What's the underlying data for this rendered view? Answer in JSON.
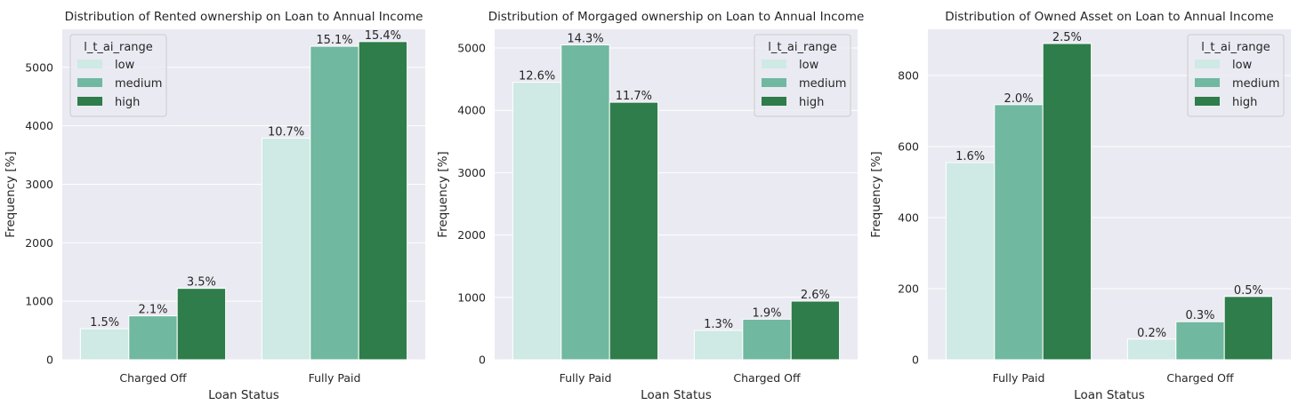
{
  "colors": {
    "axes_bg": "#eaeaf2",
    "grid": "#ffffff",
    "low": "#cfe9e4",
    "medium": "#70b8a0",
    "high": "#2e7d4a",
    "text": "#262626"
  },
  "chart_data": [
    {
      "type": "bar",
      "title": "Distribution of Rented ownership on Loan to Annual Income",
      "xlabel": "Loan Status",
      "ylabel": "Frequency [%]",
      "ylim": [
        0,
        5650
      ],
      "yticks": [
        0,
        1000,
        2000,
        3000,
        4000,
        5000
      ],
      "grid": true,
      "legend": {
        "title": "l_t_ai_range",
        "placement": "upper-left"
      },
      "categories": [
        "Charged Off",
        "Fully Paid"
      ],
      "series": [
        {
          "name": "low",
          "values": [
            530,
            3790
          ],
          "labels": [
            "1.5%",
            "10.7%"
          ]
        },
        {
          "name": "medium",
          "values": [
            750,
            5360
          ],
          "labels": [
            "2.1%",
            "15.1%"
          ]
        },
        {
          "name": "high",
          "values": [
            1220,
            5440
          ],
          "labels": [
            "3.5%",
            "15.4%"
          ]
        }
      ]
    },
    {
      "type": "bar",
      "title": "Distribution of Morgaged ownership on Loan to Annual Income",
      "xlabel": "Loan Status",
      "ylabel": "Frequency [%]",
      "ylim": [
        0,
        5300
      ],
      "yticks": [
        0,
        1000,
        2000,
        3000,
        4000,
        5000
      ],
      "grid": true,
      "legend": {
        "title": "l_t_ai_range",
        "placement": "upper-right"
      },
      "categories": [
        "Fully Paid",
        "Charged Off"
      ],
      "series": [
        {
          "name": "low",
          "values": [
            4450,
            470
          ],
          "labels": [
            "12.6%",
            "1.3%"
          ]
        },
        {
          "name": "medium",
          "values": [
            5050,
            650
          ],
          "labels": [
            "14.3%",
            "1.9%"
          ]
        },
        {
          "name": "high",
          "values": [
            4130,
            940
          ],
          "labels": [
            "11.7%",
            "2.6%"
          ]
        }
      ]
    },
    {
      "type": "bar",
      "title": "Distribution of Owned Asset on Loan to Annual Income",
      "xlabel": "Loan Status",
      "ylabel": "Frequency [%]",
      "ylim": [
        0,
        930
      ],
      "yticks": [
        0,
        200,
        400,
        600,
        800
      ],
      "grid": true,
      "legend": {
        "title": "l_t_ai_range",
        "placement": "upper-right"
      },
      "categories": [
        "Fully Paid",
        "Charged Off"
      ],
      "series": [
        {
          "name": "low",
          "values": [
            555,
            58
          ],
          "labels": [
            "1.6%",
            "0.2%"
          ]
        },
        {
          "name": "medium",
          "values": [
            718,
            107
          ],
          "labels": [
            "2.0%",
            "0.3%"
          ]
        },
        {
          "name": "high",
          "values": [
            890,
            178
          ],
          "labels": [
            "2.5%",
            "0.5%"
          ]
        }
      ]
    }
  ]
}
